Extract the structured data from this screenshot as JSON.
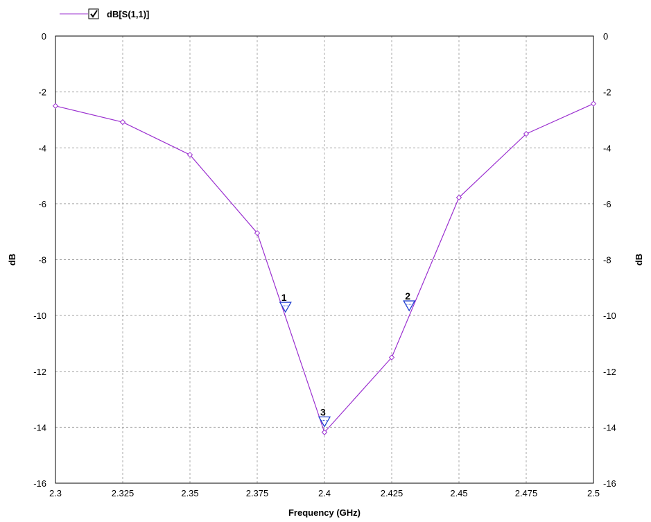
{
  "colors": {
    "series": "#9b30d0",
    "marker": "#1f3fcf",
    "grid": "#a8a8a8",
    "axis": "#000000"
  },
  "chart_data": {
    "type": "line",
    "xlabel": "Frequency (GHz)",
    "ylabel_left": "dB",
    "ylabel_right": "dB",
    "xlim": [
      2.3,
      2.5
    ],
    "ylim": [
      -16,
      0
    ],
    "xticks": [
      "2.3",
      "2.325",
      "2.35",
      "2.375",
      "2.4",
      "2.425",
      "2.45",
      "2.475",
      "2.5"
    ],
    "yticks": [
      "0",
      "-2",
      "-4",
      "-6",
      "-8",
      "-10",
      "-12",
      "-14",
      "-16"
    ],
    "grid": true,
    "legend": {
      "position": "top-left",
      "checked": true
    },
    "series": [
      {
        "name": "dB[S(1,1)]",
        "x": [
          2.3,
          2.325,
          2.35,
          2.375,
          2.4,
          2.425,
          2.45,
          2.475,
          2.5
        ],
        "y": [
          -2.5,
          -3.08,
          -4.25,
          -7.05,
          -14.18,
          -11.5,
          -5.78,
          -3.5,
          -2.42
        ]
      }
    ],
    "markers": [
      {
        "label": "1",
        "x": 2.3855,
        "y": -9.85
      },
      {
        "label": "2",
        "x": 2.4315,
        "y": -9.8
      },
      {
        "label": "3",
        "x": 2.4,
        "y": -13.95
      }
    ]
  }
}
